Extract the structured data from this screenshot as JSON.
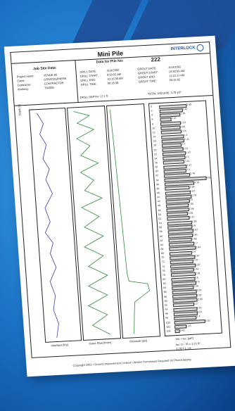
{
  "sheet": {
    "title": "Mini Pile",
    "logo_text": "INTERLOCK",
    "data_title": "Data for Pile No:",
    "pile_no": "222",
    "job_heading": "Job Site Data:",
    "job_fields": [
      {
        "label": "Project name:",
        "value": "VENUE 85"
      },
      {
        "label": "Client:",
        "value": "STRATOSPHERE"
      },
      {
        "label": "Contractor:",
        "value": "CONTRACTOR"
      },
      {
        "label": "Working:",
        "value": "TIM008"
      }
    ],
    "drill_fields": [
      {
        "label": "DRILL DATE:",
        "value": "4/14/2002"
      },
      {
        "label": "DRILL START:",
        "value": "9:59:02 AM"
      },
      {
        "label": "DRILL END:",
        "value": "10:15:36 AM"
      },
      {
        "label": "DRILL TIME:",
        "value": "00:16:36"
      }
    ],
    "grout_fields": [
      {
        "label": "GROUT DATE:",
        "value": "4/14/2002"
      },
      {
        "label": "GROUT START:",
        "value": "10:50:09 AM"
      },
      {
        "label": "GROUT END:",
        "value": "11:22:11 AM"
      },
      {
        "label": "GROUT TIME:",
        "value": "00:32:02"
      }
    ],
    "drill_depth": "DRILL DEPTH: 17.1 ft",
    "total_volume": "TOTAL VOLUME: 3.79 yd³",
    "axis_labels": [
      "Interface [ft/s]",
      "Grout Flow [l/min]",
      "Pressure [psi]"
    ],
    "depth_axis": "Depth [ft]",
    "bar_header": "Vol. / Inc. [yd³]",
    "bar_values": [
      "2.93",
      "2.44",
      "2.16",
      "1.12",
      "2.13",
      "2.05",
      "2.14",
      "2.4",
      "2.41",
      "2.1",
      "2.21",
      "2.47",
      "2.4",
      "2.24",
      "2.47",
      "2.4",
      "2.78",
      "4.58",
      "3.18",
      "2.64",
      "2.67",
      "2.76",
      "2.5",
      "2.35",
      "2.38",
      "2.25",
      "2.37",
      "2.61",
      "2.6",
      "2.67",
      "2.61",
      "2.46",
      "2.7",
      "2.84",
      "2.4",
      "2.67",
      "2.47",
      "2.67",
      "2.44",
      "2.61",
      "2.5",
      "2.6",
      "2.28",
      "2.61",
      "2.61",
      "2.65",
      "2.2",
      "2.51",
      "2.51",
      "2.4",
      "3.32",
      "1.15",
      "0.41"
    ],
    "summary_lines": [
      "Inc: 0 - 76 = 3.71 ft³",
      "3.79 = 1.1 ft"
    ],
    "footer": "Copyright 2002 • Ground Improvement Limited • Written Permission Required for Photocopying"
  }
}
